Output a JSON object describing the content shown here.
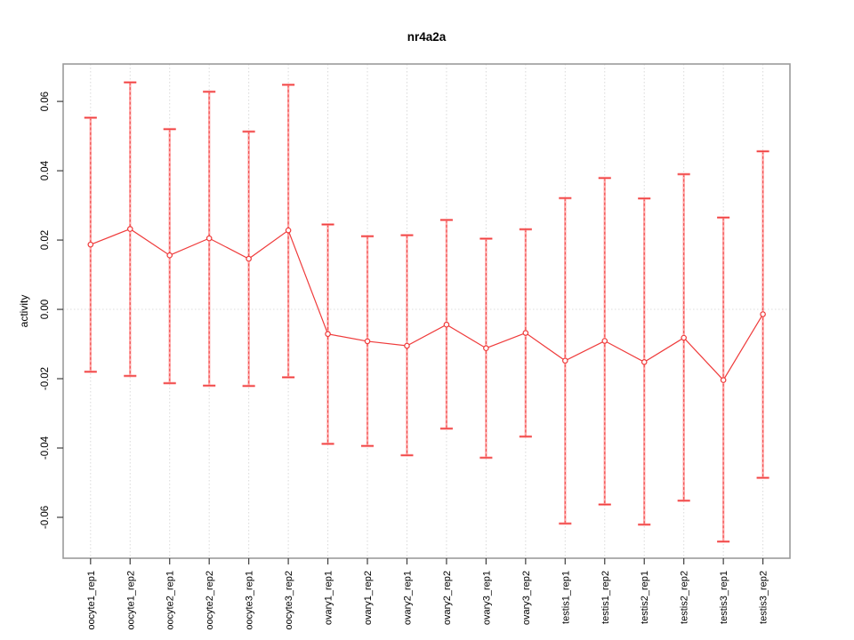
{
  "chart_data": {
    "type": "line",
    "title": "nr4a2a",
    "xlabel": "",
    "ylabel": "activity",
    "grid": "vertical-dotted-per-category, dotted-horizontal-line-at-zero",
    "legend": "none",
    "ylim": [
      -0.0718,
      0.0708
    ],
    "y_ticks": [
      {
        "value": 0.06,
        "label": "0.06"
      },
      {
        "value": 0.04,
        "label": "0.04"
      },
      {
        "value": 0.02,
        "label": "0.02"
      },
      {
        "value": 0.0,
        "label": "0.00"
      },
      {
        "value": -0.02,
        "label": "-0.02"
      },
      {
        "value": -0.04,
        "label": "-0.04"
      },
      {
        "value": -0.06,
        "label": "-0.06"
      }
    ],
    "categories": [
      "oocyte1_rep1",
      "oocyte1_rep2",
      "oocyte2_rep1",
      "oocyte2_rep2",
      "oocyte3_rep1",
      "oocyte3_rep2",
      "ovary1_rep1",
      "ovary1_rep2",
      "ovary2_rep1",
      "ovary2_rep2",
      "ovary3_rep1",
      "ovary3_rep2",
      "testis1_rep1",
      "testis1_rep2",
      "testis2_rep1",
      "testis2_rep2",
      "testis3_rep1",
      "testis3_rep2"
    ],
    "series": [
      {
        "name": "activity",
        "marker": "open-circle",
        "values": [
          0.0187,
          0.0232,
          0.0156,
          0.0205,
          0.0146,
          0.0228,
          -0.0071,
          -0.0092,
          -0.0105,
          -0.0044,
          -0.0112,
          -0.0068,
          -0.0148,
          -0.0091,
          -0.0152,
          -0.0082,
          -0.0204,
          -0.0014
        ],
        "upper_error": [
          0.0553,
          0.0655,
          0.052,
          0.0628,
          0.0513,
          0.0648,
          0.0245,
          0.0211,
          0.0214,
          0.0258,
          0.0204,
          0.0231,
          0.0321,
          0.0379,
          0.032,
          0.039,
          0.0265,
          0.0456
        ],
        "lower_error": [
          -0.018,
          -0.0192,
          -0.0213,
          -0.022,
          -0.0221,
          -0.0196,
          -0.0388,
          -0.0394,
          -0.0421,
          -0.0344,
          -0.0428,
          -0.0367,
          -0.0618,
          -0.0563,
          -0.0621,
          -0.0552,
          -0.067,
          -0.0486
        ]
      }
    ],
    "colors": {
      "series_red": "#ef3b3b",
      "error_bar_soft": "#ff9c9c",
      "grid_gray": "#d9d9d9",
      "zero_line": "#dcdcdc",
      "box_gray": "#9b9b9b",
      "tick_dark": "#3d3d3d",
      "text_black": "#000000",
      "background": "#ffffff"
    }
  }
}
